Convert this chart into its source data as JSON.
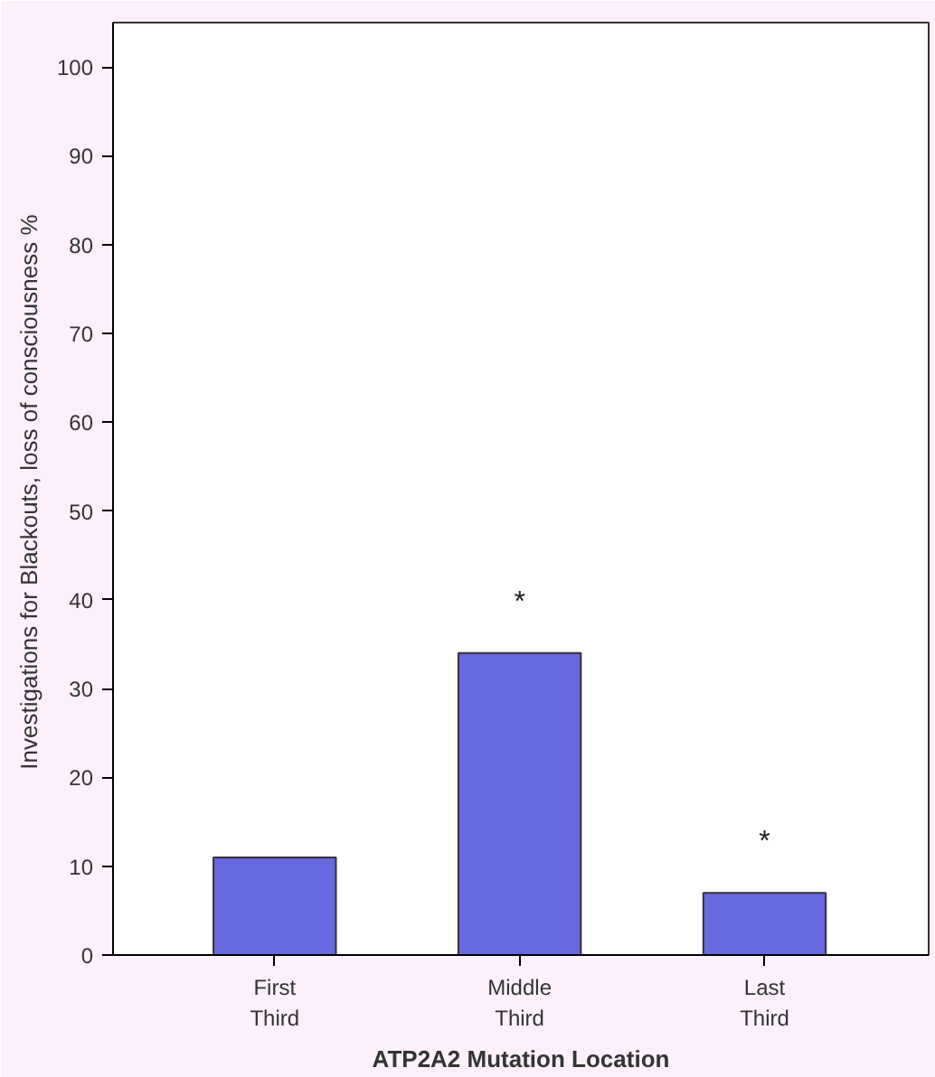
{
  "chart_data": {
    "type": "bar",
    "categories": [
      "First\nThird",
      "Middle\nThird",
      "Last\nThird"
    ],
    "values": [
      11,
      34,
      7
    ],
    "color": "#6868e0",
    "xlabel": "ATP2A2 Mutation Location",
    "ylabel": "Investigations for Blackouts, loss of consciousness  %",
    "ylim": [
      0,
      105
    ],
    "yticks": [
      0,
      10,
      20,
      30,
      40,
      50,
      60,
      70,
      80,
      90,
      100
    ],
    "grid": false,
    "annotations": [
      "*",
      "*"
    ]
  }
}
